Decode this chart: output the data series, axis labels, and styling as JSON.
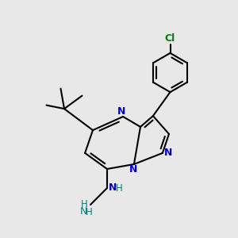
{
  "bg_color": "#e8e8e8",
  "bond_color": "#000000",
  "n_color": "#0000cc",
  "cl_color": "#008000",
  "nh_color": "#008080",
  "line_width": 1.5,
  "figsize": [
    3.0,
    3.0
  ],
  "dpi": 100,
  "xlim": [
    0,
    10
  ],
  "ylim": [
    0,
    10
  ]
}
